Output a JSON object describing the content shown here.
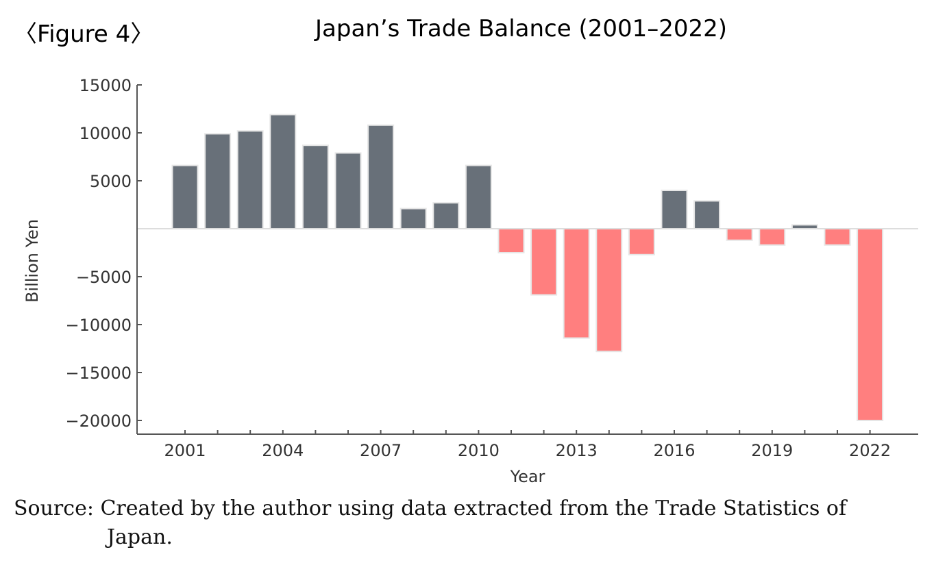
{
  "figure_label": "〈Figure 4〉",
  "source_line1": "Source: Created by the author using data extracted from the Trade Statistics of",
  "source_line2": "Japan.",
  "colors": {
    "positive": "#687079",
    "negative": "#ff7f7f",
    "axis": "#555555"
  },
  "chart_data": {
    "type": "bar",
    "title": "Japan’s Trade Balance (2001–2022)",
    "xlabel": "Year",
    "ylabel": "Billion Yen",
    "ylim": [
      -21500,
      15000
    ],
    "yticks": [
      15000,
      10000,
      5000,
      -5000,
      -10000,
      -15000,
      -20000
    ],
    "ytick_labels": [
      "15000",
      "10000",
      "5000",
      "−5000",
      "−10000",
      "−15000",
      "−20000"
    ],
    "xtick_labels": [
      "2001",
      "2004",
      "2007",
      "2010",
      "2013",
      "2016",
      "2019",
      "2022"
    ],
    "categories": [
      "2001",
      "2002",
      "2003",
      "2004",
      "2005",
      "2006",
      "2007",
      "2008",
      "2009",
      "2010",
      "2011",
      "2012",
      "2013",
      "2014",
      "2015",
      "2016",
      "2017",
      "2018",
      "2019",
      "2020",
      "2021",
      "2022"
    ],
    "values": [
      6600,
      9900,
      10200,
      11900,
      8700,
      7900,
      10800,
      2100,
      2700,
      6600,
      -2500,
      -6900,
      -11400,
      -12800,
      -2700,
      4000,
      2900,
      -1200,
      -1700,
      400,
      -1700,
      -20000
    ],
    "grid": false
  }
}
